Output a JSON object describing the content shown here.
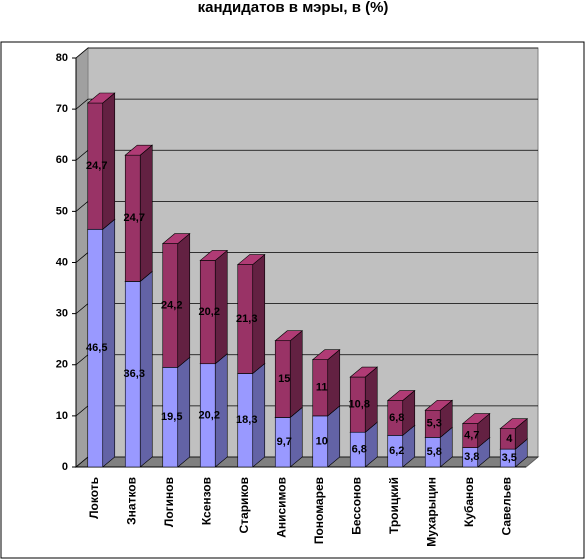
{
  "chart_data": {
    "type": "bar3d_stacked",
    "title": "кандидатов в мэры, в (%)",
    "categories": [
      "Локоть",
      "Знатков",
      "Логинов",
      "Ксензов",
      "Стариков",
      "Анисимов",
      "Пономарев",
      "Бессонов",
      "Троицкий",
      "Мухарыцин",
      "Кубанов",
      "Савельев"
    ],
    "series": [
      {
        "color": "#9999ff",
        "values": [
          46.5,
          36.3,
          19.5,
          20.2,
          18.3,
          9.7,
          10,
          6.8,
          6.2,
          5.8,
          3.8,
          3.5
        ],
        "value_labels": [
          "46,5",
          "36,3",
          "19,5",
          "20,2",
          "18,3",
          "9,7",
          "10",
          "6,8",
          "6,2",
          "5,8",
          "3,8",
          "3,5"
        ]
      },
      {
        "color": "#993366",
        "values": [
          24.7,
          24.7,
          24.2,
          20.2,
          21.3,
          15,
          11,
          10.8,
          6.8,
          5.3,
          4.7,
          4
        ],
        "value_labels": [
          "24,7",
          "24,7",
          "24,2",
          "20,2",
          "21,3",
          "15",
          "11",
          "10,8",
          "6,8",
          "5,3",
          "4,7",
          "4"
        ]
      }
    ],
    "ylim": [
      0,
      80
    ],
    "yticks": [
      0,
      10,
      20,
      30,
      40,
      50,
      60,
      70,
      80
    ],
    "grid": true
  }
}
